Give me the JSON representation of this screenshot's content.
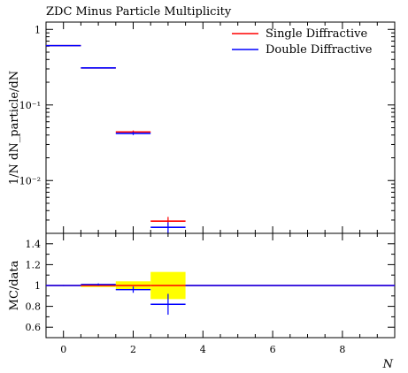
{
  "chart_data": [
    {
      "type": "histogram",
      "panel": "main",
      "title": "ZDC Minus Particle Multiplicity",
      "ylabel": "1/N dN_particle/dN",
      "yscale": "log",
      "ylim": [
        0.002,
        1.25
      ],
      "xlim": [
        -0.5,
        9.5
      ],
      "yticks": [
        {
          "value": 1,
          "label": "1"
        },
        {
          "value": 0.1,
          "label": "10⁻¹"
        },
        {
          "value": 0.01,
          "label": "10⁻²"
        }
      ],
      "legend_position": "top-right",
      "series": [
        {
          "name": "Single Diffractive",
          "color": "#ff0000",
          "bins": [
            [
              -0.5,
              0.5
            ],
            [
              0.5,
              1.5
            ],
            [
              1.5,
              2.5
            ],
            [
              2.5,
              3.5
            ]
          ],
          "values": [
            0.61,
            0.31,
            0.044,
            0.0029
          ],
          "errors": [
            0.005,
            0.004,
            0.002,
            0.0004
          ]
        },
        {
          "name": "Double Diffractive",
          "color": "#0000ff",
          "bins": [
            [
              -0.5,
              0.5
            ],
            [
              0.5,
              1.5
            ],
            [
              1.5,
              2.5
            ],
            [
              2.5,
              3.5
            ]
          ],
          "values": [
            0.61,
            0.31,
            0.042,
            0.0024
          ],
          "errors": [
            0.005,
            0.004,
            0.002,
            0.0004
          ]
        }
      ]
    },
    {
      "type": "ratio",
      "panel": "ratio",
      "ylabel": "MC/data",
      "xlabel": "N",
      "ylim": [
        0.5,
        1.5
      ],
      "xlim": [
        -0.5,
        9.5
      ],
      "yticks": [
        {
          "value": 0.6,
          "label": "0.6"
        },
        {
          "value": 0.8,
          "label": "0.8"
        },
        {
          "value": 1.0,
          "label": "1"
        },
        {
          "value": 1.2,
          "label": "1.2"
        },
        {
          "value": 1.4,
          "label": "1.4"
        }
      ],
      "xticks": [
        {
          "value": 0,
          "label": "0"
        },
        {
          "value": 2,
          "label": "2"
        },
        {
          "value": 4,
          "label": "4"
        },
        {
          "value": 6,
          "label": "6"
        },
        {
          "value": 8,
          "label": "8"
        }
      ],
      "band_color": "#ffff00",
      "band": [
        {
          "x": [
            -0.5,
            0.5
          ],
          "low": 0.995,
          "high": 1.005
        },
        {
          "x": [
            0.5,
            1.5
          ],
          "low": 0.985,
          "high": 1.015
        },
        {
          "x": [
            1.5,
            2.5
          ],
          "low": 0.96,
          "high": 1.04
        },
        {
          "x": [
            2.5,
            3.5
          ],
          "low": 0.87,
          "high": 1.13
        }
      ],
      "series": [
        {
          "name": "Single Diffractive",
          "color": "#ff0000",
          "bins": [
            [
              -0.5,
              0.5
            ],
            [
              0.5,
              1.5
            ],
            [
              1.5,
              2.5
            ],
            [
              2.5,
              3.5
            ],
            [
              3.5,
              9.5
            ]
          ],
          "values": [
            1.0,
            1.0,
            1.0,
            1.0,
            1.0
          ],
          "errors": [
            0,
            0,
            0,
            0,
            0
          ]
        },
        {
          "name": "Double Diffractive",
          "color": "#0000ff",
          "bins": [
            [
              -0.5,
              0.5
            ],
            [
              0.5,
              1.5
            ],
            [
              1.5,
              2.5
            ],
            [
              2.5,
              3.5
            ],
            [
              3.5,
              9.5
            ]
          ],
          "values": [
            1.0,
            1.01,
            0.96,
            0.82,
            1.0
          ],
          "errors": [
            0.005,
            0.01,
            0.03,
            0.1,
            0
          ]
        }
      ]
    }
  ]
}
